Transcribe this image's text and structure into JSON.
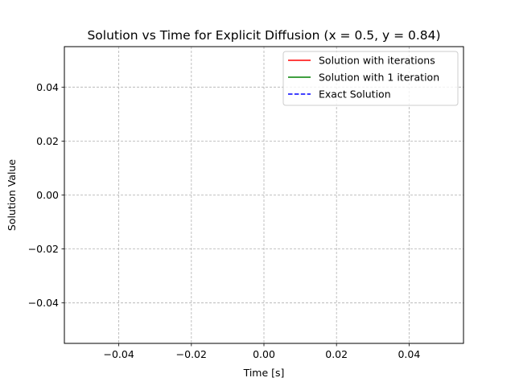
{
  "chart_data": {
    "type": "line",
    "title": "Solution vs Time for Explicit Diffusion (x = 0.5, y = 0.84)",
    "xlabel": "Time [s]",
    "ylabel": "Solution Value",
    "xlim": [
      -0.055,
      0.055
    ],
    "ylim": [
      -0.055,
      0.055
    ],
    "xticks": [
      -0.04,
      -0.02,
      0.0,
      0.02,
      0.04
    ],
    "yticks": [
      -0.04,
      -0.02,
      0.0,
      0.02,
      0.04
    ],
    "xtick_labels": [
      "−0.04",
      "−0.02",
      "0.00",
      "0.02",
      "0.04"
    ],
    "ytick_labels": [
      "−0.04",
      "−0.02",
      "0.00",
      "0.02",
      "0.04"
    ],
    "grid": true,
    "legend_position": "top-right",
    "series": [
      {
        "name": "Solution with iterations",
        "color": "#ff0000",
        "style": "solid",
        "x": [],
        "y": []
      },
      {
        "name": "Solution with 1 iteration",
        "color": "#008000",
        "style": "solid",
        "x": [],
        "y": []
      },
      {
        "name": "Exact Solution",
        "color": "#0000ff",
        "style": "dashed",
        "x": [],
        "y": []
      }
    ]
  }
}
